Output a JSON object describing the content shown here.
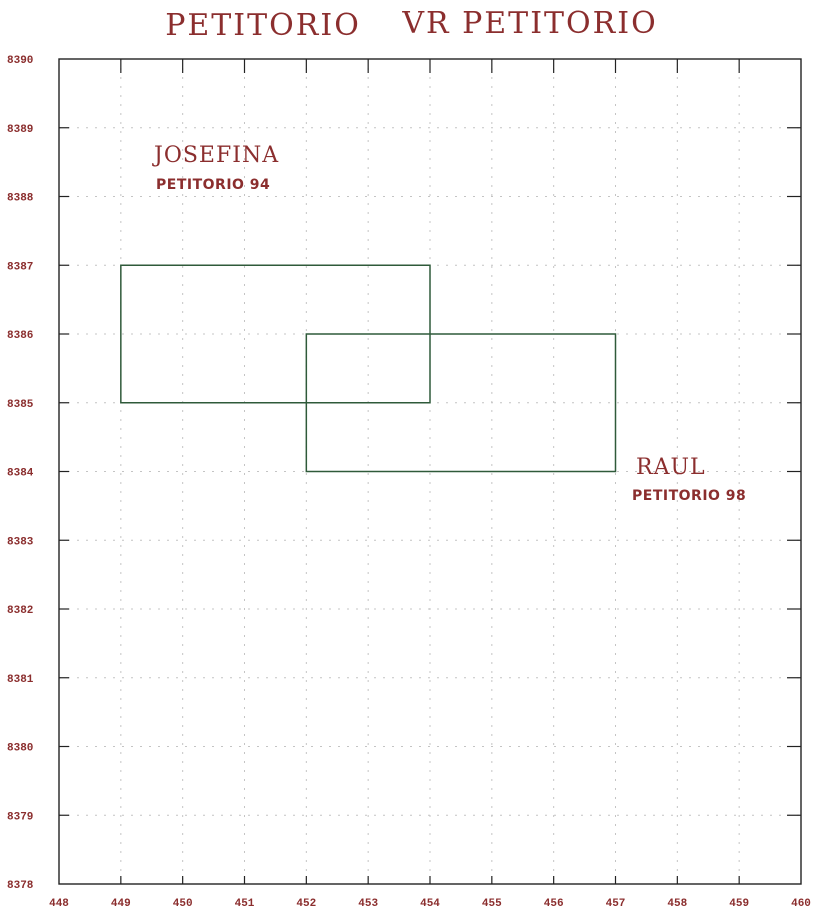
{
  "header": {
    "title_left": "PETITORIO",
    "title_right": "VR PETITORIO"
  },
  "chart_data": {
    "type": "map",
    "x_ticks": [
      "448",
      "449",
      "450",
      "451",
      "452",
      "453",
      "454",
      "455",
      "456",
      "457",
      "458",
      "459",
      "460"
    ],
    "y_ticks": [
      "8390",
      "8389",
      "8388",
      "8387",
      "8386",
      "8385",
      "8384",
      "8383",
      "8382",
      "8381",
      "8380",
      "8379",
      "8378"
    ],
    "xlim": [
      448,
      460
    ],
    "ylim": [
      8378,
      8390
    ],
    "grid": true,
    "claims": [
      {
        "name": "JOSEFINA",
        "subtitle": "PETITORIO 94",
        "x_range": [
          449,
          454
        ],
        "y_range": [
          8385,
          8387
        ]
      },
      {
        "name": "RAUL",
        "subtitle": "PETITORIO 98",
        "x_range": [
          452,
          457
        ],
        "y_range": [
          8384,
          8386
        ]
      }
    ]
  },
  "colors": {
    "text": "#8b2e2e",
    "axis": "#222222",
    "claim_stroke": "#2f5a3a"
  }
}
